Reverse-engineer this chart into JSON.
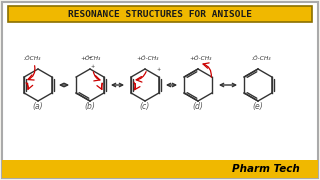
{
  "title": "RESONANCE STRUCTURES FOR ANISOLE",
  "title_bg": "#F0B800",
  "title_border": "#8B7000",
  "title_color": "#1a1a1a",
  "bg_color": "#f5f4ee",
  "main_bg": "#ffffff",
  "footer_text": "Pharm Tech",
  "footer_bg": "#F0B800",
  "footer_text_color": "#000000",
  "structures": [
    "(a)",
    "(b)",
    "(c)",
    "(d)",
    "(e)"
  ],
  "arrow_color": "#cc0000",
  "line_color": "#333333",
  "border_color": "#aaaaaa"
}
